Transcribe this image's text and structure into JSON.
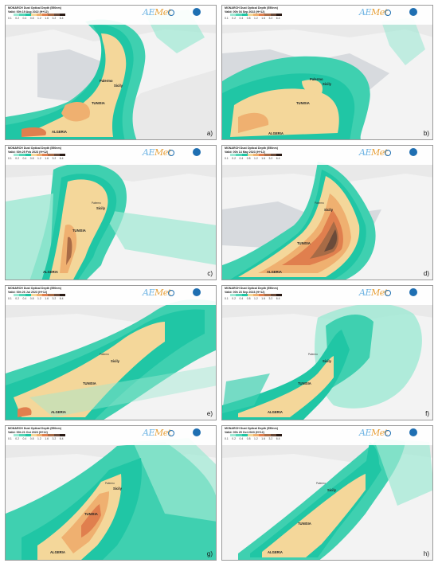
{
  "colorbar": {
    "colors": [
      "#ffffff",
      "#9ee8d3",
      "#56d6b6",
      "#20c6a5",
      "#f4d79a",
      "#efb070",
      "#e07f4e",
      "#a86b46",
      "#6b4b3a",
      "#2a1a14"
    ],
    "ticks": [
      "0.1",
      "0.2",
      "0.4",
      "0.8",
      "1.2",
      "1.6",
      "3.2",
      "6.4"
    ]
  },
  "logo": {
    "aemet_a": "AE",
    "aemet_b": "Met"
  },
  "panels": [
    {
      "title": "MONARCH Dust Optical Depth (550nm)",
      "valid": "Valid: 00h 19 Aug 2022 (H+12)",
      "panel_label": "a)",
      "labels": {
        "region1": "TUNISIA",
        "region2": "ALGERIA",
        "island": "Sicily",
        "city": "Palermo"
      }
    },
    {
      "title": "MONARCH Dust Optical Depth (550nm)",
      "valid": "Valid: 00h 04 Sep 2022 (H+12)",
      "panel_label": "b)",
      "labels": {
        "region1": "TUNISIA",
        "region2": "ALGERIA",
        "island": "Sicily",
        "city": "Palermo"
      }
    },
    {
      "title": "MONARCH Dust Optical Depth (550nm)",
      "valid": "Valid: 00h 25 Feb 2023 (H+12)",
      "panel_label": "c)",
      "labels": {
        "region1": "TUNISIA",
        "region2": "ALGERIA",
        "island": "Sicily",
        "city": "Palermo"
      }
    },
    {
      "title": "MONARCH Dust Optical Depth (550nm)",
      "valid": "Valid: 00h 14 May 2023 (H+12)",
      "panel_label": "d)",
      "labels": {
        "region1": "TUNISIA",
        "region2": "ALGERIA",
        "island": "Sicily",
        "city": "Palermo"
      }
    },
    {
      "title": "MONARCH Dust Optical Depth (550nm)",
      "valid": "Valid: 00h 26 Jul 2023 (H+12)",
      "panel_label": "e)",
      "labels": {
        "region1": "TUNISIA",
        "region2": "ALGERIA",
        "island": "Sicily",
        "city": "Palermo"
      }
    },
    {
      "title": "MONARCH Dust Optical Depth (550nm)",
      "valid": "Valid: 00h 23 Sep 2023 (H+12)",
      "panel_label": "f)",
      "labels": {
        "region1": "TUNISIA",
        "region2": "ALGERIA",
        "island": "Sicily",
        "city": "Palermo"
      }
    },
    {
      "title": "MONARCH Dust Optical Depth (550nm)",
      "valid": "Valid: 00h 21 Oct 2023 (H+12)",
      "panel_label": "g)",
      "labels": {
        "region1": "TUNISIA",
        "region2": "ALGERIA",
        "island": "Sicily",
        "city": "Palermo"
      }
    },
    {
      "title": "MONARCH Dust Optical Depth (550nm)",
      "valid": "Valid: 00h 25 Oct 2023 (H+12)",
      "panel_label": "h)",
      "labels": {
        "region1": "TUNISIA",
        "region2": "ALGERIA",
        "island": "Sicily",
        "city": "Palermo"
      }
    }
  ]
}
